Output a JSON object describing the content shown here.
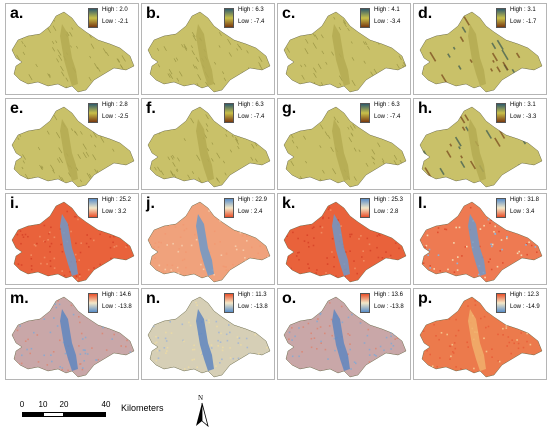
{
  "colors": {
    "dem_ramp": [
      "#2f5b6b",
      "#c8c04a",
      "#7a3a10"
    ],
    "heat_ramp": [
      "#5a8ec8",
      "#f4e8c8",
      "#e8502a"
    ],
    "dem_fill": "#c9c169",
    "dem_texture": "#8f8a3b",
    "heat_fill": "#e9623b",
    "heat_low": "#6f99c9",
    "heat_pale": "#f2dfb8"
  },
  "panels": [
    {
      "label": "a.",
      "high": "High : 2.0",
      "low": "Low : -2.1",
      "style": "dem"
    },
    {
      "label": "b.",
      "high": "High : 6.3",
      "low": "Low : -7.4",
      "style": "dem"
    },
    {
      "label": "c.",
      "high": "High : 4.1",
      "low": "Low : -3.4",
      "style": "dem"
    },
    {
      "label": "d.",
      "high": "High : 3.1",
      "low": "Low : -1.7",
      "style": "dem-coarse"
    },
    {
      "label": "e.",
      "high": "High : 2.8",
      "low": "Low : -2.5",
      "style": "dem"
    },
    {
      "label": "f.",
      "high": "High : 6.3",
      "low": "Low : -7.4",
      "style": "dem"
    },
    {
      "label": "g.",
      "high": "High : 6.3",
      "low": "Low : -7.4",
      "style": "dem"
    },
    {
      "label": "h.",
      "high": "High : 3.1",
      "low": "Low : -3.3",
      "style": "dem-coarse"
    },
    {
      "label": "i.",
      "high": "High : 25.2",
      "low": "Low : 3.2",
      "style": "heat"
    },
    {
      "label": "j.",
      "high": "High : 22.9",
      "low": "Low : 2.4",
      "style": "heat-pale"
    },
    {
      "label": "k.",
      "high": "High : 25.3",
      "low": "Low : 2.8",
      "style": "heat"
    },
    {
      "label": "l.",
      "high": "High : 31.8",
      "low": "Low : 3.4",
      "style": "heat-mixed"
    },
    {
      "label": "m.",
      "high": "High : 14.6",
      "low": "Low : -13.8",
      "style": "diff"
    },
    {
      "label": "n.",
      "high": "High : 11.3",
      "low": "Low : -13.8",
      "style": "diff-pale"
    },
    {
      "label": "o.",
      "high": "High : 13.6",
      "low": "Low : -13.8",
      "style": "diff"
    },
    {
      "label": "p.",
      "high": "High : 12.3",
      "low": "Low : -14.9",
      "style": "diff-warm"
    }
  ],
  "scalebar": {
    "ticks": [
      "0",
      "10",
      "20",
      "40"
    ],
    "tick_values": [
      0,
      10,
      20,
      40
    ],
    "unit": "Kilometers"
  },
  "north_arrow": {
    "label": "N"
  }
}
